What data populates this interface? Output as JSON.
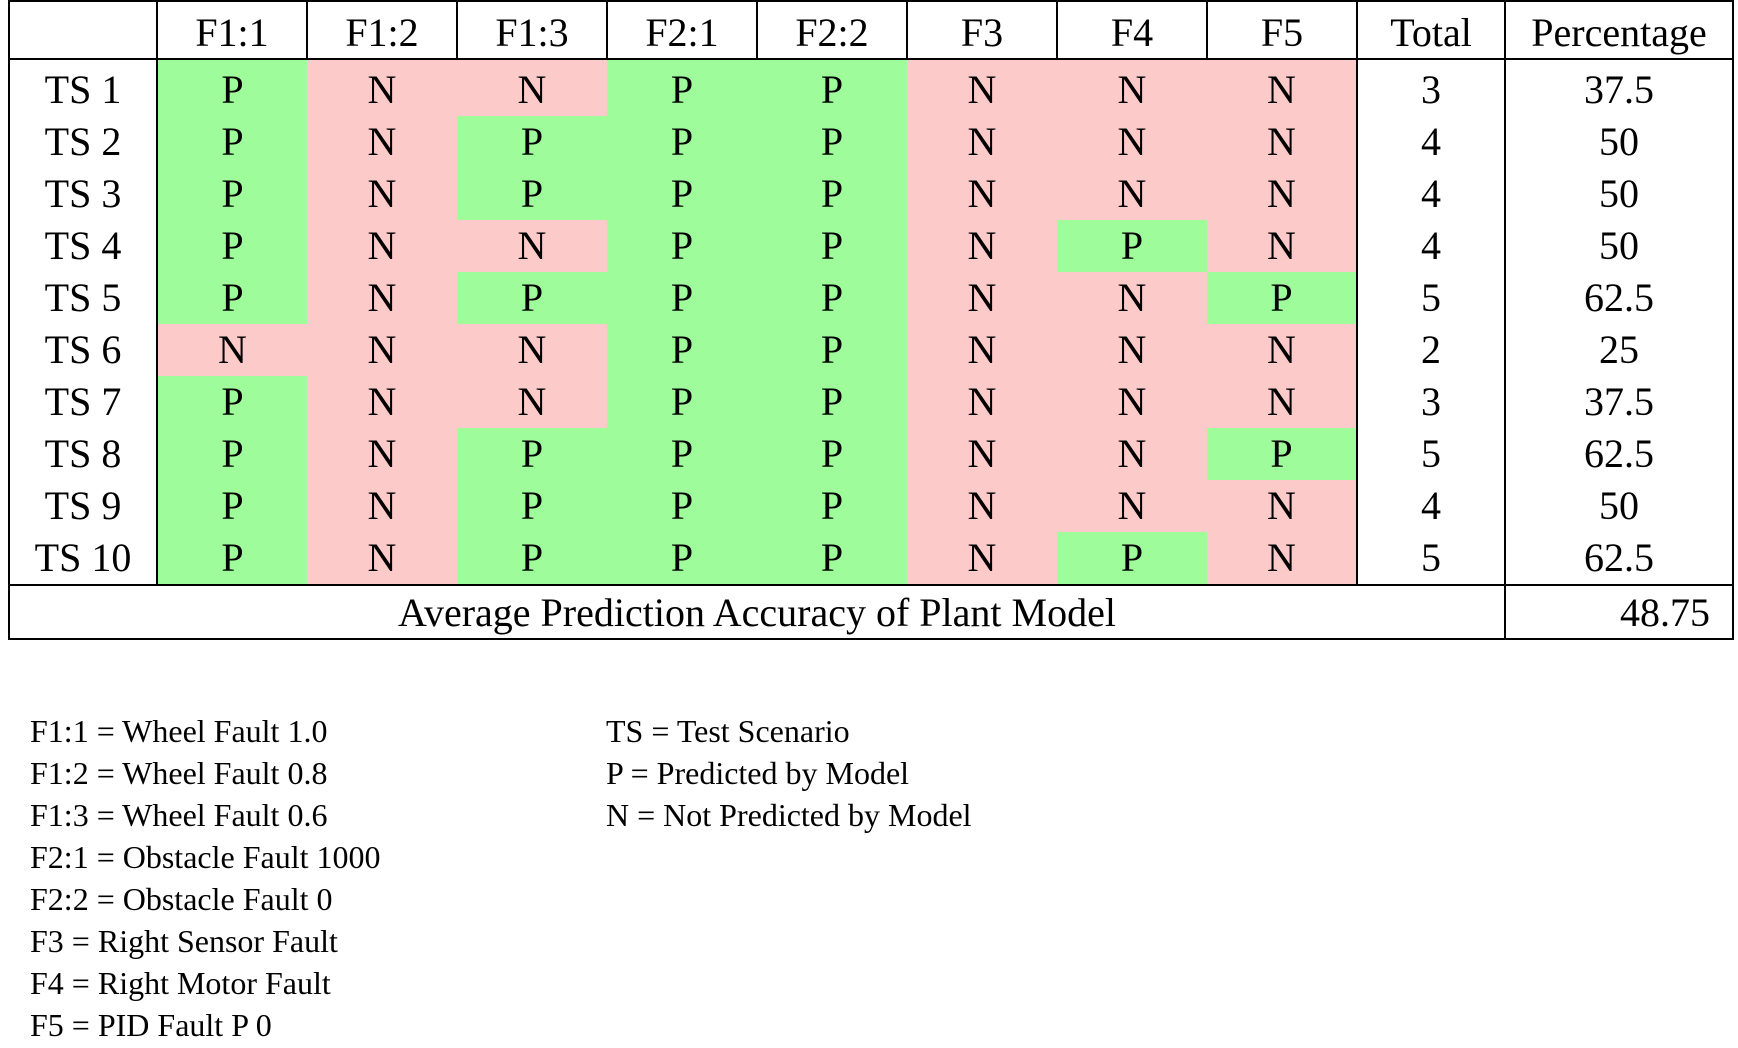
{
  "table": {
    "columns": [
      "",
      "F1:1",
      "F1:2",
      "F1:3",
      "F2:1",
      "F2:2",
      "F3",
      "F4",
      "F5",
      "Total",
      "Percentage"
    ],
    "rows": [
      {
        "label": "TS 1",
        "cells": [
          "P",
          "N",
          "N",
          "P",
          "P",
          "N",
          "N",
          "N"
        ],
        "total": "3",
        "percentage": "37.5"
      },
      {
        "label": "TS 2",
        "cells": [
          "P",
          "N",
          "P",
          "P",
          "P",
          "N",
          "N",
          "N"
        ],
        "total": "4",
        "percentage": "50"
      },
      {
        "label": "TS 3",
        "cells": [
          "P",
          "N",
          "P",
          "P",
          "P",
          "N",
          "N",
          "N"
        ],
        "total": "4",
        "percentage": "50"
      },
      {
        "label": "TS 4",
        "cells": [
          "P",
          "N",
          "N",
          "P",
          "P",
          "N",
          "P",
          "N"
        ],
        "total": "4",
        "percentage": "50"
      },
      {
        "label": "TS 5",
        "cells": [
          "P",
          "N",
          "P",
          "P",
          "P",
          "N",
          "N",
          "P"
        ],
        "total": "5",
        "percentage": "62.5"
      },
      {
        "label": "TS 6",
        "cells": [
          "N",
          "N",
          "N",
          "P",
          "P",
          "N",
          "N",
          "N"
        ],
        "total": "2",
        "percentage": "25"
      },
      {
        "label": "TS 7",
        "cells": [
          "P",
          "N",
          "N",
          "P",
          "P",
          "N",
          "N",
          "N"
        ],
        "total": "3",
        "percentage": "37.5"
      },
      {
        "label": "TS 8",
        "cells": [
          "P",
          "N",
          "P",
          "P",
          "P",
          "N",
          "N",
          "P"
        ],
        "total": "5",
        "percentage": "62.5"
      },
      {
        "label": "TS 9",
        "cells": [
          "P",
          "N",
          "P",
          "P",
          "P",
          "N",
          "N",
          "N"
        ],
        "total": "4",
        "percentage": "50"
      },
      {
        "label": "TS 10",
        "cells": [
          "P",
          "N",
          "P",
          "P",
          "P",
          "N",
          "P",
          "N"
        ],
        "total": "5",
        "percentage": "62.5"
      }
    ],
    "footer": {
      "label": "Average Prediction Accuracy of Plant Model",
      "value": "48.75"
    }
  },
  "colors": {
    "predicted": "#9efc9a",
    "not_predicted": "#fdcaca"
  },
  "legend": {
    "left": [
      "F1:1 = Wheel Fault 1.0",
      "F1:2 = Wheel Fault 0.8",
      "F1:3 = Wheel Fault 0.6",
      "F2:1 = Obstacle Fault 1000",
      "F2:2 = Obstacle Fault 0",
      "F3 = Right Sensor Fault",
      "F4 = Right Motor Fault",
      "F5 = PID Fault P 0"
    ],
    "right": [
      "TS = Test Scenario",
      "P = Predicted by Model",
      "N = Not Predicted by Model"
    ]
  }
}
